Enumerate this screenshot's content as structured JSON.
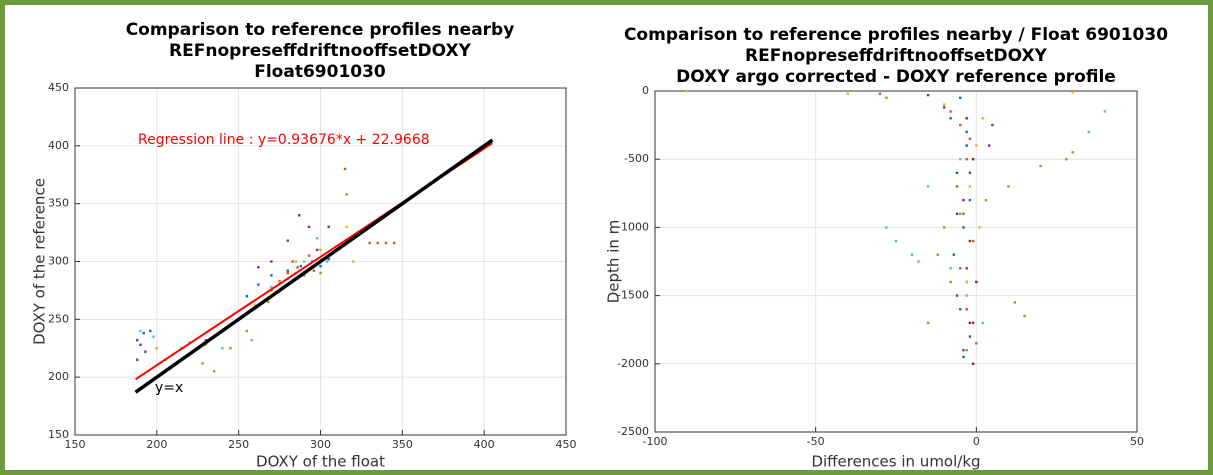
{
  "chart_data": [
    {
      "type": "scatter",
      "title": [
        "Comparison to reference profiles nearby",
        "REFnopreseffdriftnooffsetDOXY",
        "Float6901030"
      ],
      "xlabel": "DOXY of the float",
      "ylabel": "DOXY of the reference",
      "xlim": [
        150,
        450
      ],
      "ylim": [
        150,
        450
      ],
      "xticks": [
        150,
        200,
        250,
        300,
        350,
        400,
        450
      ],
      "yticks": [
        150,
        200,
        250,
        300,
        350,
        400,
        450
      ],
      "grid": true,
      "series": [
        {
          "color": "#0072bd",
          "x": [
            188,
            192,
            196,
            200,
            230,
            255,
            262,
            270,
            280,
            288,
            295,
            300,
            305
          ],
          "values": [
            232,
            238,
            240,
            225,
            232,
            270,
            280,
            288,
            292,
            296,
            300,
            296,
            302
          ]
        },
        {
          "color": "#d95319",
          "x": [
            270,
            275,
            280,
            283,
            286,
            290,
            293,
            296,
            330,
            335,
            340,
            345,
            315
          ],
          "values": [
            275,
            283,
            290,
            300,
            295,
            288,
            305,
            292,
            316,
            316,
            316,
            316,
            380
          ]
        },
        {
          "color": "#edb120",
          "x": [
            200,
            210,
            230,
            260,
            275,
            285,
            300,
            316,
            320
          ],
          "values": [
            225,
            220,
            228,
            262,
            282,
            300,
            310,
            330,
            300
          ]
        },
        {
          "color": "#7e2f8e",
          "x": [
            188,
            190,
            193,
            262,
            270,
            280,
            287,
            293,
            298,
            305
          ],
          "values": [
            215,
            228,
            222,
            295,
            300,
            318,
            340,
            330,
            310,
            330
          ]
        },
        {
          "color": "#77ac30",
          "x": [
            205,
            215,
            228,
            235,
            245,
            255,
            268,
            285,
            300,
            316
          ],
          "values": [
            215,
            225,
            212,
            205,
            225,
            240,
            265,
            290,
            290,
            358
          ]
        },
        {
          "color": "#4dbeee",
          "x": [
            190,
            198,
            220,
            240,
            258,
            270,
            280,
            290,
            298,
            304
          ],
          "values": [
            240,
            235,
            230,
            225,
            232,
            278,
            285,
            300,
            320,
            300
          ]
        }
      ],
      "lines": [
        {
          "color": "#ff0000",
          "width": 2,
          "x": [
            187,
            405
          ],
          "values": [
            198.14,
            402.35
          ]
        },
        {
          "color": "#000000",
          "width": 3.5,
          "x": [
            187,
            405
          ],
          "values": [
            187,
            405
          ]
        }
      ],
      "annotations": [
        {
          "text": "Regression line : y=0.93676*x + 22.9668",
          "color": "#ff0000"
        },
        {
          "text": "y=x",
          "color": "#000000"
        }
      ]
    },
    {
      "type": "scatter",
      "title": [
        "Comparison to reference profiles nearby / Float 6901030",
        "REFnopreseffdriftnooffsetDOXY",
        "DOXY argo corrected - DOXY reference profile"
      ],
      "xlabel": "Differences in umol/kg",
      "ylabel": "Depth in m",
      "xlim": [
        -100,
        50
      ],
      "ylim": [
        -2500,
        0
      ],
      "xticks": [
        -100,
        -50,
        0,
        50
      ],
      "yticks": [
        -2500,
        -2000,
        -1500,
        -1000,
        -500,
        0
      ],
      "grid": true,
      "series": [
        {
          "color": "#0072bd",
          "x": [
            -5,
            -8,
            -3,
            -6,
            -2,
            -4,
            -7,
            -3,
            -5,
            -2,
            -4,
            -6,
            -3
          ],
          "values": [
            -50,
            -200,
            -400,
            -600,
            -800,
            -1000,
            -1200,
            -1400,
            -1600,
            -1800,
            -1950,
            -1500,
            -300
          ]
        },
        {
          "color": "#4dbeee",
          "x": [
            -10,
            40,
            35,
            -5,
            -15,
            -25,
            -20,
            -8,
            -3,
            2,
            -28,
            -18
          ],
          "values": [
            -100,
            -150,
            -300,
            -500,
            -700,
            -1100,
            -1200,
            -1300,
            -1500,
            -1700,
            -1000,
            -1250
          ]
        },
        {
          "color": "#77ac30",
          "x": [
            -28,
            30,
            28,
            20,
            10,
            3,
            -5,
            -10,
            -12,
            -8,
            -15,
            -3,
            12,
            15
          ],
          "values": [
            -50,
            -450,
            -500,
            -550,
            -700,
            -800,
            -900,
            -1000,
            -1200,
            -1400,
            -1700,
            -1900,
            -1550,
            -1650
          ]
        },
        {
          "color": "#d95319",
          "x": [
            -8,
            -5,
            -2,
            -3,
            -6,
            -4,
            -1,
            -5,
            -3,
            -30,
            0
          ],
          "values": [
            -150,
            -250,
            -350,
            -500,
            -700,
            -900,
            -1100,
            -1300,
            -1600,
            -20,
            -1850
          ]
        },
        {
          "color": "#7e2f8e",
          "x": [
            -15,
            -10,
            5,
            4,
            -2,
            -6,
            -3,
            -1,
            -4
          ],
          "values": [
            -30,
            -120,
            -250,
            -400,
            -600,
            -900,
            -1300,
            -1700,
            -1900
          ]
        },
        {
          "color": "#edb120",
          "x": [
            -90,
            -40,
            -10,
            2,
            0,
            -2,
            1,
            -3,
            30
          ],
          "values": [
            0,
            -20,
            -100,
            -200,
            -400,
            -700,
            -1000,
            -1400,
            -10
          ]
        },
        {
          "color": "#a2142f",
          "x": [
            -3,
            -1,
            -4,
            -2,
            0,
            -2,
            -1
          ],
          "values": [
            -200,
            -500,
            -800,
            -1100,
            -1400,
            -1700,
            -2000
          ]
        }
      ]
    }
  ]
}
